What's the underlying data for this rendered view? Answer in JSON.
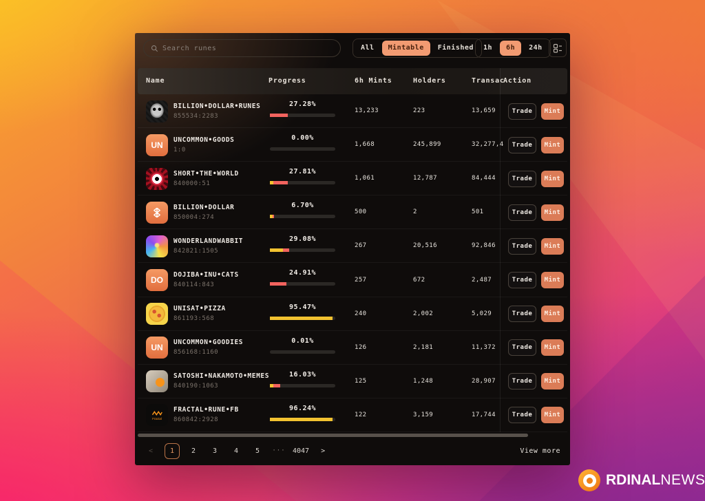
{
  "toolbar": {
    "search_placeholder": "Search runes",
    "filter_tabs": [
      "All",
      "Mintable",
      "Finished"
    ],
    "filter_active": "Mintable",
    "time_tabs": [
      "1h",
      "6h",
      "24h"
    ],
    "time_active": "6h"
  },
  "table": {
    "columns": [
      "Name",
      "Progress",
      "6h Mints",
      "Holders",
      "Transac",
      "Action"
    ],
    "rows": [
      {
        "name": "BILLION•DOLLAR•RUNES",
        "id": "855534:2283",
        "progress": "27.28%",
        "mints": "13,233",
        "holders": "223",
        "transactions": "13,659",
        "icon": "pixel-skull-art-icon",
        "icon_text": "",
        "segments": [
          {
            "color": "red",
            "pct": 27.28
          }
        ]
      },
      {
        "name": "UNCOMMON•GOODS",
        "id": "1:0",
        "progress": "0.00%",
        "mints": "1,668",
        "holders": "245,899",
        "transactions": "32,277,4",
        "icon": "un-badge-icon",
        "icon_text": "UN",
        "segments": []
      },
      {
        "name": "SHORT•THE•WORLD",
        "id": "840000:51",
        "progress": "27.81%",
        "mints": "1,061",
        "holders": "12,787",
        "transactions": "84,444",
        "icon": "red-eye-art-icon",
        "icon_text": "",
        "segments": [
          {
            "color": "yellow",
            "pct": 5
          },
          {
            "color": "red",
            "pct": 22.81
          }
        ]
      },
      {
        "name": "BILLION•DOLLAR",
        "id": "850004:274",
        "progress": "6.70%",
        "mints": "500",
        "holders": "2",
        "transactions": "501",
        "icon": "rune-badge-icon",
        "icon_text": "",
        "segments": [
          {
            "color": "yellow",
            "pct": 4
          },
          {
            "color": "red",
            "pct": 2.7
          }
        ]
      },
      {
        "name": "WONDERLANDWABBIT",
        "id": "842821:1505",
        "progress": "29.08%",
        "mints": "267",
        "holders": "20,516",
        "transactions": "92,846",
        "icon": "rabbit-art-icon",
        "icon_text": "",
        "segments": [
          {
            "color": "yellow",
            "pct": 20
          },
          {
            "color": "red",
            "pct": 9.08
          }
        ]
      },
      {
        "name": "DOJIBA•INU•CATS",
        "id": "840114:843",
        "progress": "24.91%",
        "mints": "257",
        "holders": "672",
        "transactions": "2,487",
        "icon": "do-badge-icon",
        "icon_text": "DO",
        "segments": [
          {
            "color": "red",
            "pct": 24.91
          }
        ]
      },
      {
        "name": "UNISAT•PIZZA",
        "id": "861193:568",
        "progress": "95.47%",
        "mints": "240",
        "holders": "2,002",
        "transactions": "5,029",
        "icon": "pizza-art-icon",
        "icon_text": "",
        "segments": [
          {
            "color": "yellow",
            "pct": 95.47
          }
        ]
      },
      {
        "name": "UNCOMMON•GOODIES",
        "id": "856168:1160",
        "progress": "0.01%",
        "mints": "126",
        "holders": "2,181",
        "transactions": "11,372",
        "icon": "un-badge-icon",
        "icon_text": "UN",
        "segments": [
          {
            "color": "yellow",
            "pct": 0.01
          }
        ]
      },
      {
        "name": "SATOSHI•NAKAMOTO•MEMES",
        "id": "840190:1063",
        "progress": "16.03%",
        "mints": "125",
        "holders": "1,248",
        "transactions": "28,907",
        "icon": "satoshi-art-icon",
        "icon_text": "",
        "segments": [
          {
            "color": "yellow",
            "pct": 5
          },
          {
            "color": "red",
            "pct": 11.03
          }
        ]
      },
      {
        "name": "FRACTAL•RUNE•FB",
        "id": "860842:2928",
        "progress": "96.24%",
        "mints": "122",
        "holders": "3,159",
        "transactions": "17,744",
        "icon": "fractal-badge-icon",
        "icon_text": "Fractal",
        "segments": [
          {
            "color": "yellow",
            "pct": 96.24
          }
        ]
      }
    ]
  },
  "actions": {
    "trade": "Trade",
    "mint": "Mint"
  },
  "pagination": {
    "prev": "<",
    "pages": [
      "1",
      "2",
      "3",
      "4",
      "5"
    ],
    "active_page": "1",
    "ellipsis": "···",
    "last_page": "4047",
    "next": ">",
    "view_more": "View more"
  },
  "branding": {
    "logo_bold": "RDINAL",
    "logo_light": "NEWS"
  },
  "colors": {
    "accent_tab": "#f29b72",
    "mint_button": "#db7c57",
    "bar_yellow": "#f2c230",
    "bar_red": "#f2635e",
    "active_page_border": "#bb7448",
    "panel_bg": "#0f0c0b"
  }
}
